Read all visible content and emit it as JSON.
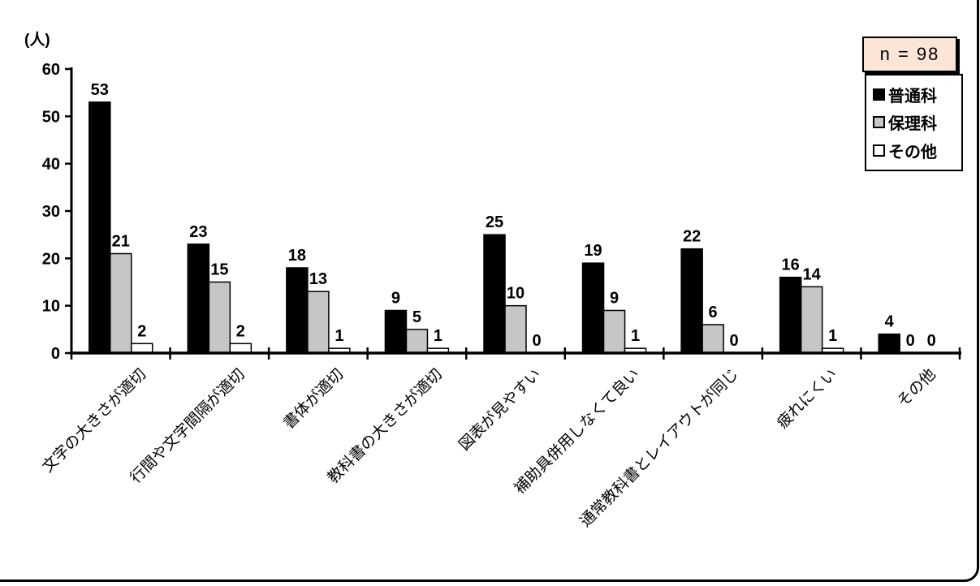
{
  "frame": {
    "border_color": "#000000"
  },
  "n_box": {
    "label": "n = 98",
    "background": "#fbe5d6",
    "border_color": "#000000"
  },
  "chart_data": {
    "type": "bar",
    "title": "",
    "unit_label": "(人)",
    "xlabel": "",
    "ylabel": "(人)",
    "ylim": [
      0,
      60
    ],
    "yticks": [
      0,
      10,
      20,
      30,
      40,
      50,
      60
    ],
    "grid": false,
    "legend_position": "top-right",
    "categories": [
      "文字の大きさが適切",
      "行間や文字間隔が適切",
      "書体が適切",
      "教科書の大きさが適切",
      "図表が見やすい",
      "補助具併用しなくて良い",
      "通常教科書とレイアウトが同じ",
      "疲れにくい",
      "その他"
    ],
    "series": [
      {
        "name": "普通科",
        "color": "#000000",
        "values": [
          53,
          23,
          18,
          9,
          25,
          19,
          22,
          16,
          4
        ]
      },
      {
        "name": "保理科",
        "color": "#c6c6c6",
        "values": [
          21,
          15,
          13,
          5,
          10,
          9,
          6,
          14,
          0
        ]
      },
      {
        "name": "その他",
        "color": "#ffffff",
        "values": [
          2,
          2,
          1,
          1,
          0,
          1,
          0,
          1,
          0
        ]
      }
    ]
  }
}
